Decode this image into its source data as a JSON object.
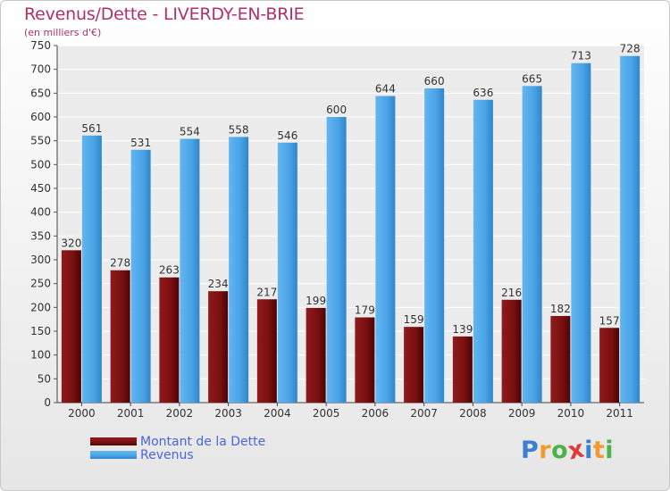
{
  "header": {
    "title": "Revenus/Dette - LIVERDY-EN-BRIE",
    "subtitle": "(en milliers d'€)"
  },
  "logo": {
    "letters": [
      "P",
      "r",
      "o",
      "x",
      "i",
      "t",
      "i"
    ],
    "letter_colors": [
      "#3c7fd0",
      "#f29a2e",
      "#4bb34a",
      "#e03a3a",
      "#3c7fd0",
      "#f29a2e",
      "#4bb34a"
    ]
  },
  "colors": {
    "debt": "#7a0f10",
    "revenue": "#4aa3e6",
    "title": "#b0306a",
    "legend_text": "#4a66d8"
  },
  "chart_data": {
    "type": "bar",
    "categories": [
      "2000",
      "2001",
      "2002",
      "2003",
      "2004",
      "2005",
      "2006",
      "2007",
      "2008",
      "2009",
      "2010",
      "2011"
    ],
    "series": [
      {
        "name": "Montant de la Dette",
        "values": [
          320,
          278,
          263,
          234,
          217,
          199,
          179,
          159,
          139,
          216,
          182,
          157
        ]
      },
      {
        "name": "Revenus",
        "values": [
          561,
          531,
          554,
          558,
          546,
          600,
          644,
          660,
          636,
          665,
          713,
          728
        ]
      }
    ],
    "ylim": [
      0,
      750
    ],
    "yticks": [
      0,
      50,
      100,
      150,
      200,
      250,
      300,
      350,
      400,
      450,
      500,
      550,
      600,
      650,
      700,
      750
    ],
    "grid": true,
    "legend_position": "bottom-left"
  }
}
